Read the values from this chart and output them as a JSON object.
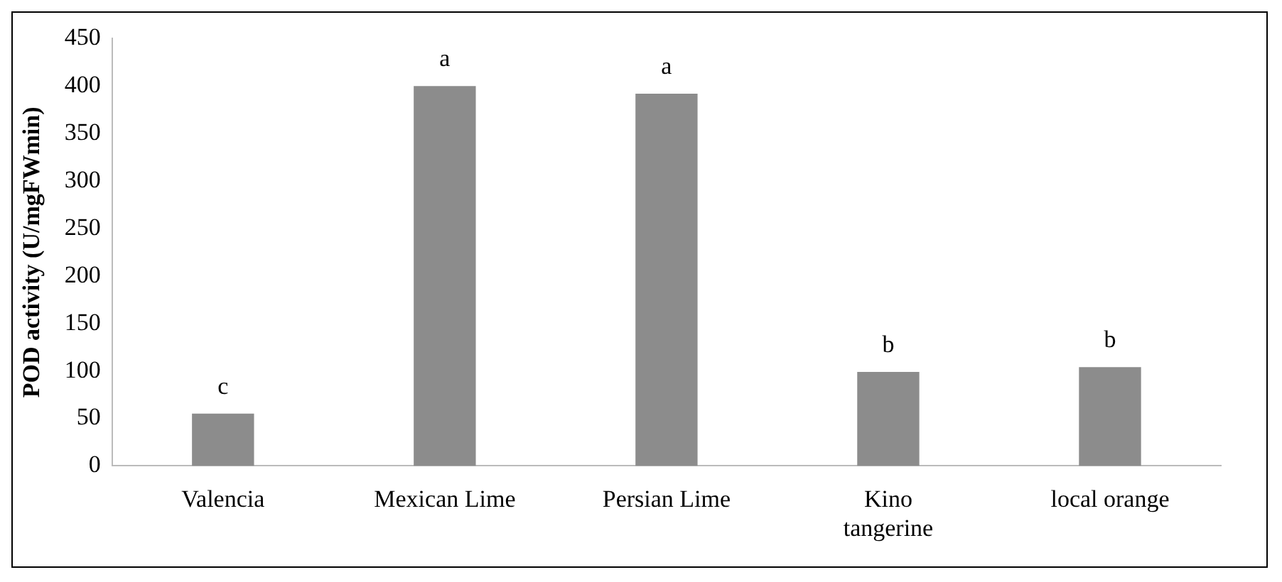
{
  "chart_data": {
    "type": "bar",
    "ylabel": "POD activity (U/mgFWmin)",
    "categories": [
      "Valencia",
      "Mexican Lime",
      "Persian Lime",
      "Kino tangerine",
      "local orange"
    ],
    "values": [
      55,
      400,
      392,
      99,
      104
    ],
    "color": "#8c8c8c",
    "ylim": [
      0,
      450
    ],
    "yticks": [
      0,
      50,
      100,
      150,
      200,
      250,
      300,
      350,
      400,
      450
    ],
    "grid": false,
    "annotations": [
      {
        "text": "c",
        "x": "Valencia",
        "y": 55
      },
      {
        "text": "a",
        "x": "Mexican Lime",
        "y": 400
      },
      {
        "text": "a",
        "x": "Persian Lime",
        "y": 392
      },
      {
        "text": "b",
        "x": "Kino tangerine",
        "y": 99
      },
      {
        "text": "b",
        "x": "local orange",
        "y": 104
      }
    ]
  }
}
